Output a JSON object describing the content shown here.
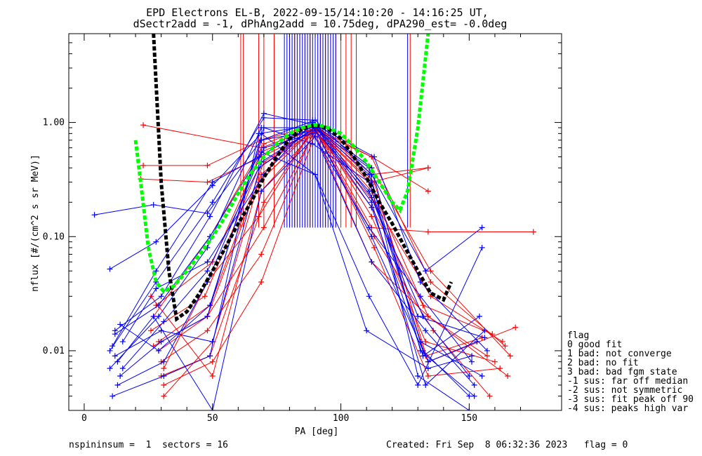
{
  "chart_data": {
    "type": "line",
    "title": "EPD Electrons EL-B, 2022-09-15/14:10:20 - 14:16:25 UT,",
    "subtitle": "dSectr2add = -1, dPhAng2add = 10.75deg, dPA290_est=  -0.0deg",
    "xlabel": "PA [deg]",
    "ylabel": "nflux [#/(cm^2 s sr MeV)]",
    "x_scale": "linear",
    "y_scale": "log",
    "xlim": [
      -6,
      186
    ],
    "ylim": [
      0.003,
      6.0
    ],
    "x_ticks": [
      0,
      50,
      100,
      150
    ],
    "x_tick_labels": [
      "0",
      "50",
      "100",
      "150"
    ],
    "y_ticks": [
      0.01,
      0.1,
      1.0
    ],
    "y_tick_labels": [
      "0.01",
      "0.10",
      "1.00"
    ],
    "legend": {
      "title": "flag",
      "entries": [
        " 0 good fit",
        " 1 bad: not converge",
        " 2 bad: no fit",
        " 3 bad: bad fgm state",
        "-1 sus: far off median",
        "-2 sus: not symmetric",
        "-3 sus: fit peak off 90",
        "-4 sus: peaks high var"
      ]
    },
    "series": [
      {
        "color": "#ff0000",
        "style": "traces with + markers",
        "traces": [
          {
            "x": [
              23,
              69,
              90,
              112,
              134
            ],
            "y": [
              0.95,
              0.6,
              0.9,
              0.3,
              0.4
            ]
          },
          {
            "x": [
              23,
              48,
              69,
              90,
              112,
              134
            ],
            "y": [
              0.42,
              0.42,
              0.7,
              0.95,
              0.35,
              0.4
            ]
          },
          {
            "x": [
              22,
              48,
              69,
              90,
              112,
              134
            ],
            "y": [
              0.32,
              0.3,
              0.5,
              0.85,
              0.5,
              0.25
            ]
          },
          {
            "x": [
              27,
              48,
              69,
              90,
              112,
              134,
              175
            ],
            "y": [
              0.011,
              0.02,
              0.35,
              0.9,
              0.12,
              0.11,
              0.11
            ]
          },
          {
            "x": [
              31,
              50,
              69,
              90,
              112,
              134,
              157
            ],
            "y": [
              0.005,
              0.008,
              0.04,
              0.8,
              0.06,
              0.02,
              0.009
            ]
          },
          {
            "x": [
              26,
              47,
              68,
              90,
              113,
              135,
              163
            ],
            "y": [
              0.015,
              0.03,
              0.4,
              0.85,
              0.2,
              0.03,
              0.012
            ]
          },
          {
            "x": [
              30,
              49,
              70,
              90,
              112,
              133,
              160
            ],
            "y": [
              0.006,
              0.009,
              0.2,
              0.95,
              0.15,
              0.012,
              0.008
            ]
          },
          {
            "x": [
              28,
              50,
              69,
              90,
              111,
              134,
              165
            ],
            "y": [
              0.025,
              0.06,
              0.55,
              0.9,
              0.3,
              0.02,
              0.006
            ]
          },
          {
            "x": [
              29,
              48,
              70,
              90,
              113,
              136,
              158
            ],
            "y": [
              0.01,
              0.02,
              0.12,
              0.85,
              0.1,
              0.015,
              0.004
            ]
          },
          {
            "x": [
              31,
              50,
              68,
              90,
              112,
              133,
              155
            ],
            "y": [
              0.004,
              0.012,
              0.3,
              0.9,
              0.25,
              0.009,
              0.013
            ]
          },
          {
            "x": [
              27,
              49,
              70,
              90,
              112,
              135,
              166
            ],
            "y": [
              0.02,
              0.1,
              0.65,
              0.95,
              0.4,
              0.05,
              0.009
            ]
          },
          {
            "x": [
              30,
              48,
              69,
              90,
              113,
              134,
              162
            ],
            "y": [
              0.008,
              0.015,
              0.07,
              0.9,
              0.08,
              0.006,
              0.007
            ]
          },
          {
            "x": [
              26,
              50,
              69,
              90,
              112,
              132,
              159
            ],
            "y": [
              0.03,
              0.006,
              0.25,
              0.85,
              0.18,
              0.025,
              0.014
            ]
          },
          {
            "x": [
              29,
              49,
              70,
              90,
              112,
              135,
              164
            ],
            "y": [
              0.012,
              0.025,
              0.45,
              0.9,
              0.5,
              0.04,
              0.011
            ]
          },
          {
            "x": [
              31,
              48,
              68,
              90,
              113,
              134,
              168
            ],
            "y": [
              0.007,
              0.04,
              0.15,
              0.95,
              0.3,
              0.008,
              0.016
            ]
          }
        ]
      },
      {
        "color": "#0000ff",
        "style": "traces with + markers",
        "traces": [
          {
            "x": [
              4,
              27,
              48,
              69,
              90,
              112,
              133,
              155
            ],
            "y": [
              0.155,
              0.19,
              0.16,
              0.7,
              1.05,
              0.35,
              0.05,
              0.12
            ]
          },
          {
            "x": [
              10,
              28,
              50,
              69,
              90,
              111,
              130,
              155
            ],
            "y": [
              0.052,
              0.09,
              0.28,
              0.8,
              0.35,
              0.03,
              0.005,
              0.08
            ]
          },
          {
            "x": [
              12,
              30,
              49,
              70,
              90,
              112,
              131,
              152
            ],
            "y": [
              0.015,
              0.03,
              0.15,
              1.2,
              0.95,
              0.4,
              0.01,
              0.004
            ]
          },
          {
            "x": [
              10,
              29,
              48,
              69,
              89,
              111,
              132,
              150
            ],
            "y": [
              0.007,
              0.02,
              0.08,
              0.9,
              0.9,
              0.25,
              0.02,
              0.006
            ]
          },
          {
            "x": [
              11,
              28,
              50,
              68,
              90,
              112,
              133,
              156
            ],
            "y": [
              0.011,
              0.05,
              0.3,
              0.5,
              0.95,
              0.2,
              0.005,
              0.015
            ]
          },
          {
            "x": [
              13,
              31,
              48,
              70,
              89,
              111,
              131,
              151
            ],
            "y": [
              0.005,
              0.008,
              0.04,
              0.6,
              0.8,
              0.12,
              0.03,
              0.008
            ]
          },
          {
            "x": [
              14,
              29,
              49,
              69,
              90,
              112,
              134,
              153
            ],
            "y": [
              0.017,
              0.01,
              0.025,
              0.7,
              0.85,
              0.1,
              0.008,
              0.012
            ]
          },
          {
            "x": [
              12,
              30,
              50,
              69,
              90,
              111,
              130,
              150
            ],
            "y": [
              0.009,
              0.015,
              0.012,
              0.45,
              0.9,
              0.4,
              0.006,
              0.003
            ]
          },
          {
            "x": [
              15,
              28,
              48,
              70,
              89,
              112,
              132,
              154
            ],
            "y": [
              0.012,
              0.035,
              0.06,
              0.35,
              1.0,
              0.18,
              0.009,
              0.02
            ]
          },
          {
            "x": [
              11,
              31,
              49,
              68,
              90,
              113,
              131,
              157
            ],
            "y": [
              0.004,
              0.006,
              0.009,
              0.8,
              0.95,
              0.5,
              0.04,
              0.01
            ]
          },
          {
            "x": [
              13,
              27,
              50,
              69,
              90,
              112,
              133,
              152
            ],
            "y": [
              0.008,
              0.02,
              0.003,
              0.25,
              0.75,
              0.06,
              0.015,
              0.005
            ]
          },
          {
            "x": [
              14,
              30,
              48,
              70,
              89,
              111,
              131,
              155
            ],
            "y": [
              0.006,
              0.012,
              0.02,
              0.9,
              0.65,
              0.3,
              0.012,
              0.006
            ]
          },
          {
            "x": [
              12,
              29,
              49,
              69,
              90,
              110,
              134,
              151
            ],
            "y": [
              0.014,
              0.025,
              0.1,
              0.55,
              0.35,
              0.015,
              0.007,
              0.009
            ]
          },
          {
            "x": [
              10,
              28,
              50,
              70,
              89,
              112,
              130,
              156
            ],
            "y": [
              0.01,
              0.04,
              0.2,
              1.1,
              1.05,
              0.22,
              0.02,
              0.013
            ]
          },
          {
            "x": [
              15,
              31,
              48,
              68,
              90,
              111,
              132,
              150
            ],
            "y": [
              0.007,
              0.018,
              0.05,
              0.4,
              0.9,
              0.35,
              0.01,
              0.004
            ]
          }
        ]
      },
      {
        "color": "#000000",
        "style": "thick dashed fit curve",
        "x": [
          27,
          30,
          33,
          36,
          40,
          45,
          50,
          55,
          60,
          65,
          70,
          75,
          80,
          85,
          88,
          90,
          92,
          95,
          100,
          105,
          110,
          115,
          120,
          125,
          130,
          135,
          140,
          143
        ],
        "y": [
          6.0,
          0.3,
          0.05,
          0.019,
          0.022,
          0.032,
          0.05,
          0.08,
          0.13,
          0.2,
          0.33,
          0.5,
          0.72,
          0.88,
          0.93,
          0.94,
          0.93,
          0.88,
          0.72,
          0.5,
          0.33,
          0.2,
          0.13,
          0.08,
          0.05,
          0.032,
          0.028,
          0.04
        ]
      },
      {
        "color": "#00ff00",
        "style": "thick dashed fit curve",
        "x": [
          20,
          22,
          25,
          28,
          31,
          35,
          40,
          45,
          50,
          55,
          60,
          65,
          70,
          75,
          80,
          85,
          88,
          90,
          92,
          95,
          100,
          105,
          110,
          115,
          120,
          123,
          126,
          130,
          134
        ],
        "y": [
          0.7,
          0.3,
          0.08,
          0.04,
          0.033,
          0.037,
          0.05,
          0.07,
          0.1,
          0.15,
          0.24,
          0.36,
          0.5,
          0.65,
          0.8,
          0.9,
          0.94,
          0.95,
          0.94,
          0.9,
          0.8,
          0.62,
          0.45,
          0.3,
          0.2,
          0.17,
          0.25,
          0.9,
          6.0
        ]
      }
    ],
    "vertical_marks": {
      "red_x": [
        61,
        62,
        68,
        70,
        74,
        80,
        82,
        84,
        86,
        88,
        90,
        92,
        94,
        96,
        98,
        100,
        102,
        104,
        106,
        127
      ],
      "blue_x": [
        78,
        79,
        80,
        81,
        82,
        83,
        84,
        85,
        86,
        87,
        88,
        89,
        90,
        91,
        92,
        93,
        94,
        95,
        96,
        97,
        98,
        126
      ],
      "y_range": [
        0.12,
        6.0
      ]
    }
  },
  "footer": {
    "left": "nspininsum =  1  sectors = 16",
    "right": "Created: Fri Sep  8 06:32:36 2023   flag = 0"
  }
}
